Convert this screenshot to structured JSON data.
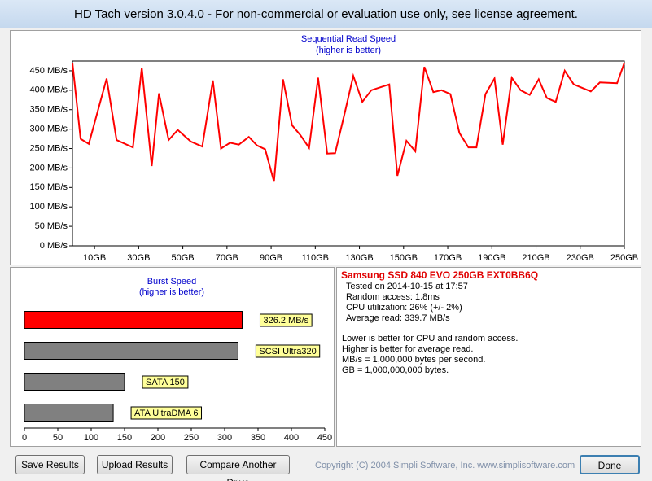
{
  "window": {
    "title": "HD Tach version 3.0.4.0  - For non-commercial or evaluation use only, see license agreement."
  },
  "chart_data": [
    {
      "type": "line",
      "title": "Sequential Read Speed",
      "subtitle": "(higher is better)",
      "x": [
        0,
        3.7,
        7.4,
        15.5,
        20,
        27.4,
        31.4,
        35.9,
        39.2,
        43.6,
        47.7,
        53.6,
        58.8,
        63.6,
        67.3,
        71.4,
        75.4,
        79.9,
        83.6,
        87.3,
        91.3,
        95.4,
        99.5,
        103.2,
        107.2,
        111.3,
        115.4,
        119,
        123.5,
        127.2,
        131.3,
        135.4,
        143.5,
        147.2,
        151.3,
        155.3,
        159.4,
        163.5,
        167.2,
        171.2,
        175.3,
        179.4,
        183,
        187.1,
        191.2,
        194.9,
        199,
        203,
        207.1,
        211.2,
        214.9,
        218.9,
        223,
        227.1,
        234.8,
        238.9,
        246.7,
        250
      ],
      "values": [
        470,
        275,
        262,
        430,
        272,
        253,
        458,
        205,
        392,
        272,
        298,
        268,
        255,
        425,
        250,
        265,
        260,
        280,
        258,
        248,
        165,
        428,
        310,
        285,
        252,
        432,
        237,
        238,
        345,
        437,
        370,
        400,
        415,
        180,
        270,
        243,
        460,
        395,
        400,
        390,
        290,
        253,
        253,
        390,
        430,
        260,
        432,
        400,
        388,
        428,
        380,
        370,
        450,
        415,
        397,
        420,
        418,
        470
      ],
      "color": "#ff0000",
      "xlim": [
        0,
        250
      ],
      "xticks": [
        {
          "value": 10,
          "label": "10GB"
        },
        {
          "value": 30,
          "label": "30GB"
        },
        {
          "value": 50,
          "label": "50GB"
        },
        {
          "value": 70,
          "label": "70GB"
        },
        {
          "value": 90,
          "label": "90GB"
        },
        {
          "value": 110,
          "label": "110GB"
        },
        {
          "value": 130,
          "label": "130GB"
        },
        {
          "value": 150,
          "label": "150GB"
        },
        {
          "value": 170,
          "label": "170GB"
        },
        {
          "value": 190,
          "label": "190GB"
        },
        {
          "value": 210,
          "label": "210GB"
        },
        {
          "value": 230,
          "label": "230GB"
        },
        {
          "value": 250,
          "label": "250GB"
        }
      ],
      "ylim": [
        0,
        475
      ],
      "yticks": [
        {
          "value": 0,
          "label": "0 MB/s"
        },
        {
          "value": 50,
          "label": "50 MB/s"
        },
        {
          "value": 100,
          "label": "100 MB/s"
        },
        {
          "value": 150,
          "label": "150 MB/s"
        },
        {
          "value": 200,
          "label": "200 MB/s"
        },
        {
          "value": 250,
          "label": "250 MB/s"
        },
        {
          "value": 300,
          "label": "300 MB/s"
        },
        {
          "value": 350,
          "label": "350 MB/s"
        },
        {
          "value": 400,
          "label": "400 MB/s"
        },
        {
          "value": 450,
          "label": "450 MB/s"
        }
      ]
    },
    {
      "type": "hbar",
      "title": "Burst Speed",
      "subtitle": "(higher is better)",
      "categories": [
        "326.2 MB/s",
        "SCSI Ultra320",
        "SATA 150",
        "ATA UltraDMA 6"
      ],
      "values": [
        326.2,
        320,
        150,
        133
      ],
      "colors": [
        "#ff0000",
        "#808080",
        "#808080",
        "#808080"
      ],
      "xlim": [
        0,
        450
      ],
      "xticks": [
        0,
        50,
        100,
        150,
        200,
        250,
        300,
        350,
        400,
        450
      ]
    }
  ],
  "info": {
    "drive": "Samsung SSD 840 EVO 250GB EXT0BB6Q",
    "stats": [
      "Tested on 2014-10-15 at 17:57",
      "Random access: 1.8ms",
      "CPU utilization: 26% (+/- 2%)",
      "Average read: 339.7 MB/s"
    ],
    "notes": [
      "Lower is better for CPU and random access.",
      "Higher is better for average read.",
      "MB/s = 1,000,000 bytes per second.",
      "GB = 1,000,000,000 bytes."
    ]
  },
  "footer": {
    "buttons": [
      "Save Results",
      "Upload Results",
      "Compare Another Drive"
    ],
    "copyright": "Copyright (C) 2004 Simpli Software, Inc. www.simplisoftware.com",
    "done": "Done"
  }
}
